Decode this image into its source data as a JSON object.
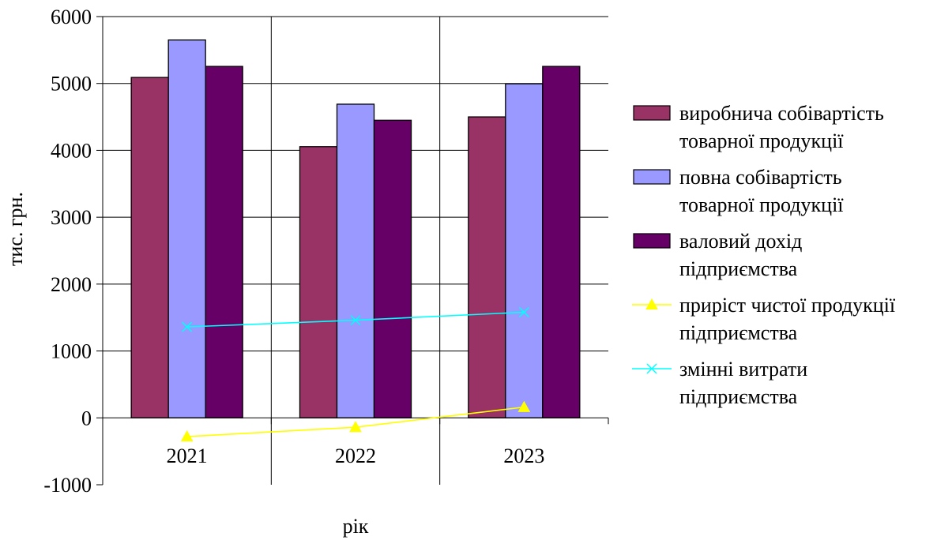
{
  "chart_data": {
    "type": "bar",
    "title": "",
    "xlabel": "рік",
    "ylabel": "тис. грн.",
    "ylim": [
      -1000,
      6000
    ],
    "yticks": [
      -1000,
      0,
      1000,
      2000,
      3000,
      4000,
      5000,
      6000
    ],
    "grid": true,
    "legend_position": "right",
    "categories": [
      "2021",
      "2022",
      "2023"
    ],
    "series": [
      {
        "kind": "bar",
        "name_lines": [
          "виробнича собівартість",
          "товарної продукції"
        ],
        "values": [
          5090,
          4055,
          4500
        ],
        "color": "#993366"
      },
      {
        "kind": "bar",
        "name_lines": [
          "повна собівартість",
          "товарної продукції"
        ],
        "values": [
          5650,
          4690,
          4995
        ],
        "color": "#9999FF"
      },
      {
        "kind": "bar",
        "name_lines": [
          "валовий дохід",
          "підприємства"
        ],
        "values": [
          5255,
          4450,
          5255
        ],
        "color": "#660066"
      },
      {
        "kind": "line",
        "marker": "triangle",
        "name_lines": [
          "приріст чистої продукції",
          "підприємства"
        ],
        "values": [
          -280,
          -140,
          160
        ],
        "color": "#FFFF00"
      },
      {
        "kind": "line",
        "marker": "x",
        "name_lines": [
          "змінні витрати",
          "підприємства"
        ],
        "values": [
          1360,
          1460,
          1580
        ],
        "color": "#00FFFF"
      }
    ]
  }
}
